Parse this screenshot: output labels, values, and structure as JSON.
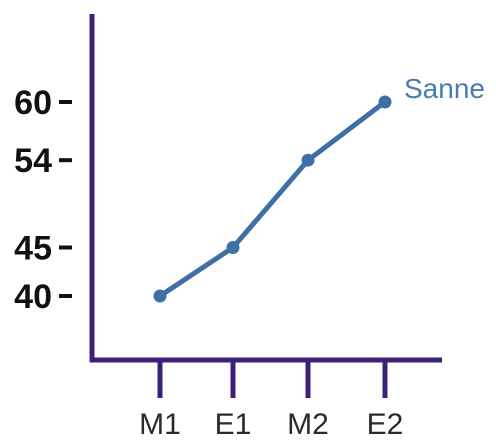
{
  "chart_data": {
    "type": "line",
    "x": [
      "M1",
      "E1",
      "M2",
      "E2"
    ],
    "yticks": [
      40,
      45,
      54,
      60
    ],
    "series": [
      {
        "name": "Sanne",
        "values": [
          40,
          45,
          54,
          60
        ]
      }
    ],
    "title": "",
    "xlabel": "",
    "ylabel": "",
    "grid": false,
    "legend": "inline label at end of line"
  },
  "colors": {
    "axis": "#3b2278",
    "series": "#3e6fa6",
    "series_label": "#4a7bb5",
    "ytick_label": "#111111",
    "xtick_label": "#2b2b2b"
  }
}
